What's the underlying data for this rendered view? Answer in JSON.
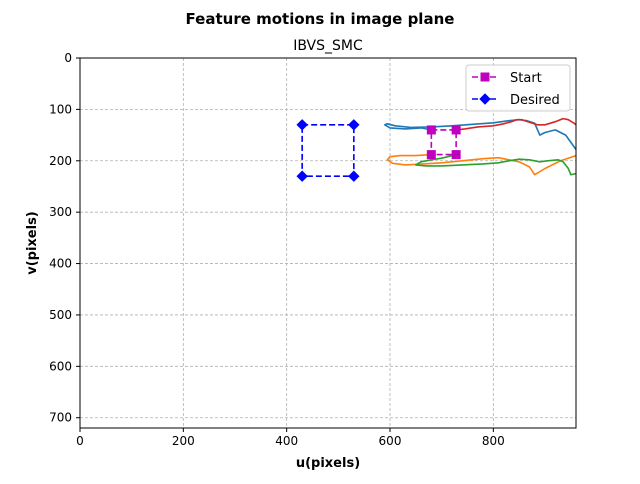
{
  "figure": {
    "suptitle": "Feature motions in image plane"
  },
  "chart_data": {
    "type": "line",
    "title": "IBVS_SMC",
    "xlabel": "u(pixels)",
    "ylabel": "v(pixels)",
    "xlim": [
      0,
      960
    ],
    "ylim": [
      720,
      0
    ],
    "y_inverted": true,
    "xticks": [
      0,
      200,
      400,
      600,
      800
    ],
    "yticks": [
      0,
      100,
      200,
      300,
      400,
      500,
      600,
      700
    ],
    "grid": true,
    "grid_style": "dashed",
    "legend": {
      "placement": "top-right",
      "entries": [
        {
          "label": "Start",
          "color": "#bf00bf",
          "marker": "square",
          "linestyle": "dashed"
        },
        {
          "label": "Desired",
          "color": "#0000ff",
          "marker": "diamond",
          "linestyle": "dashed"
        }
      ]
    },
    "start_points": {
      "color": "#bf00bf",
      "u": [
        680,
        728,
        728,
        680,
        680
      ],
      "v": [
        140,
        140,
        188,
        188,
        140
      ]
    },
    "desired_points": {
      "color": "#0000ff",
      "u": [
        430,
        530,
        530,
        430,
        430
      ],
      "v": [
        130,
        130,
        230,
        230,
        130
      ]
    },
    "series": [
      {
        "color": "#1f77b4",
        "u": [
          680,
          660,
          630,
          600,
          590,
          595,
          610,
          640,
          680,
          720,
          760,
          800,
          830,
          850,
          865,
          880,
          890,
          900,
          920,
          940,
          960
        ],
        "v": [
          140,
          136,
          138,
          136,
          130,
          128,
          132,
          135,
          134,
          132,
          129,
          126,
          122,
          120,
          122,
          127,
          150,
          145,
          140,
          150,
          178
        ]
      },
      {
        "color": "#ff7f0e",
        "u": [
          680,
          650,
          620,
          600,
          595,
          605,
          630,
          665,
          700,
          740,
          780,
          810,
          830,
          850,
          870,
          880,
          900,
          930,
          960
        ],
        "v": [
          188,
          190,
          190,
          192,
          198,
          205,
          208,
          206,
          204,
          200,
          196,
          194,
          198,
          202,
          212,
          227,
          215,
          200,
          190
        ]
      },
      {
        "color": "#d62728",
        "u": [
          728,
          745,
          770,
          800,
          820,
          835,
          845,
          855,
          870,
          885,
          900,
          920,
          935,
          945,
          955,
          960
        ],
        "v": [
          140,
          138,
          134,
          132,
          128,
          124,
          120,
          120,
          125,
          130,
          130,
          124,
          118,
          120,
          126,
          130
        ]
      },
      {
        "color": "#2ca02c",
        "u": [
          728,
          700,
          680,
          660,
          650,
          670,
          700,
          740,
          780,
          810,
          830,
          850,
          870,
          890,
          905,
          925,
          935,
          945,
          950,
          955,
          960
        ],
        "v": [
          188,
          195,
          198,
          202,
          208,
          210,
          210,
          208,
          206,
          204,
          200,
          197,
          198,
          202,
          200,
          198,
          202,
          215,
          227,
          226,
          225
        ]
      }
    ]
  }
}
